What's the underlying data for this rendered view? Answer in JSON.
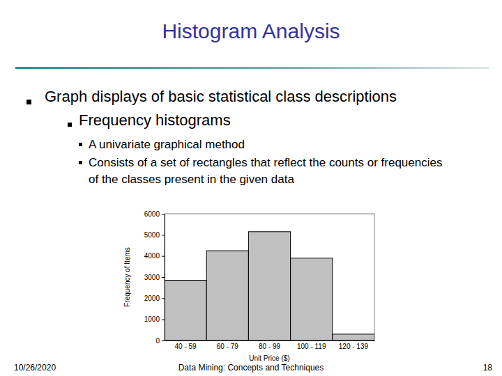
{
  "slide": {
    "title": "Histogram Analysis",
    "bullet": "Graph displays of basic statistical class descriptions",
    "sub_bullet": "Frequency histograms",
    "points": [
      "A univariate graphical method",
      "Consists of a set of rectangles that reflect the counts or frequencies of the classes present in the given data"
    ],
    "footer": {
      "date": "10/26/2020",
      "center": "Data Mining: Concepts and Techniques",
      "page": "18"
    }
  },
  "chart_data": {
    "type": "bar",
    "categories": [
      "40 - 59",
      "60 - 79",
      "80 - 99",
      "100 - 119",
      "120 - 139"
    ],
    "values": [
      2850,
      4250,
      5150,
      3900,
      300
    ],
    "color": "#c0c0c0",
    "xlabel": "Unit Price ($)",
    "ylabel": "Frequency of Items",
    "ylim": [
      0,
      6000
    ],
    "yticks": [
      0,
      1000,
      2000,
      3000,
      4000,
      5000,
      6000
    ],
    "grid": false
  }
}
